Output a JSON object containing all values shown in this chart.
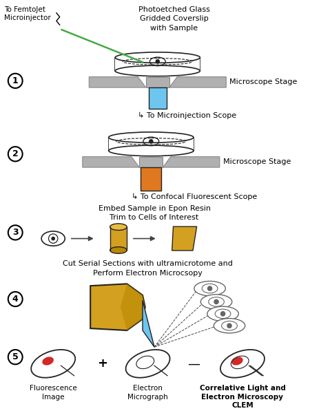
{
  "bg_color": "#ffffff",
  "colors": {
    "cyan_block": "#6ec6f0",
    "orange_block": "#e07820",
    "gold": "#d4a020",
    "gold_dark": "#b88800",
    "gold_light": "#e8bc40",
    "gray_stage": "#b0b0b0",
    "gray_dark": "#888888",
    "outline": "#222222",
    "green_needle": "#44aa44",
    "red_blob": "#cc1111",
    "arrow": "#444444",
    "section_outline": "#666666"
  },
  "texts": {
    "label1_title": "Photoetched Glass\nGridded Coverslip\nwith Sample",
    "label1_femto": "To FemtoJet\nMicroinjector",
    "label1_scope": "Microscope Stage",
    "label1_micro": "↳ To Microinjection Scope",
    "label2_scope": "Microscope Stage",
    "label2_confocal": "↳ To Confocal Fluorescent Scope",
    "label3_title": "Embed Sample in Epon Resin\nTrim to Cells of Interest",
    "label4_title": "Cut Serial Sections with ultramicrotome and\nPerform Electron Microcsopy",
    "label5_fluor": "Fluorescence\nImage",
    "label5_electron": "Electron\nMicrograph",
    "label5_clem": "Correlative Light and\nElectron Microscopy\nCLEM",
    "plus": "+",
    "dash": "—"
  }
}
